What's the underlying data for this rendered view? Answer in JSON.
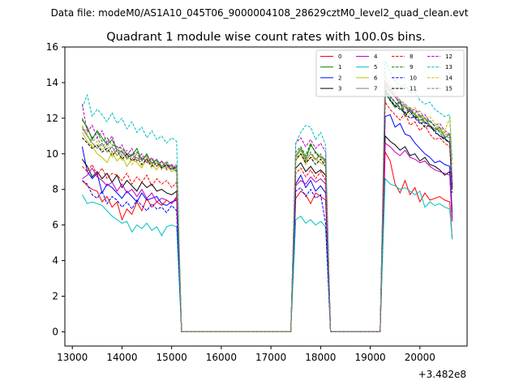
{
  "chart_data": {
    "type": "line",
    "suptitle": "Data file: modeM0/AS1A10_045T06_9000004108_28629cztM0_level2_quad_clean.evt",
    "title": "Quadrant 1 module wise count rates with 100.0s bins.",
    "xlabel": "",
    "ylabel": "",
    "x_offset_label": "+3.482e8",
    "xlim": [
      12850,
      20950
    ],
    "ylim": [
      -0.8,
      16
    ],
    "xticks": [
      13000,
      14000,
      15000,
      16000,
      17000,
      18000,
      19000,
      20000
    ],
    "yticks": [
      0,
      2,
      4,
      6,
      8,
      10,
      12,
      14,
      16
    ],
    "legend": {
      "placement": "top-right",
      "columns": 4
    },
    "segments": [
      {
        "x_start": 13200,
        "count": 20
      },
      {
        "x_start": 17500,
        "count": 7
      },
      {
        "x_start": 19300,
        "count": 14
      }
    ],
    "gaps": [
      {
        "from": 15100,
        "to": 15300
      },
      {
        "from": 17400,
        "to": 17500
      },
      {
        "from": 18100,
        "to": 18200
      },
      {
        "from": 19200,
        "to": 19300
      }
    ],
    "series": [
      {
        "name": "0",
        "color": "#ff0000",
        "dashed": false,
        "values": [
          [
            8.5,
            8.2,
            8.0,
            7.9,
            7.3,
            7.6,
            7.0,
            7.3,
            6.3,
            6.9,
            6.6,
            7.3,
            6.8,
            7.5,
            7.0,
            7.3,
            7.1,
            7.4,
            7.2,
            7.5
          ],
          [
            7.5,
            7.9,
            7.7,
            7.2,
            7.8,
            7.6,
            7.4
          ],
          [
            10.1,
            9.6,
            8.3,
            7.8,
            8.5,
            7.7,
            8.1,
            7.3,
            7.8,
            7.4,
            7.5,
            7.6,
            7.4,
            7.3
          ]
        ]
      },
      {
        "name": "1",
        "color": "#008000",
        "dashed": false,
        "values": [
          [
            11.9,
            11.5,
            10.8,
            11.3,
            10.9,
            10.5,
            10.8,
            10.2,
            10.1,
            9.8,
            9.9,
            10.3,
            9.6,
            10.0,
            9.4,
            9.7,
            9.2,
            9.4,
            9.3,
            9.1
          ],
          [
            9.9,
            10.3,
            9.7,
            10.5,
            10.1,
            9.8,
            9.6
          ],
          [
            13.5,
            13.0,
            12.6,
            12.9,
            12.1,
            12.5,
            12.2,
            11.9,
            12.0,
            11.6,
            11.3,
            11.5,
            10.9,
            11.1
          ]
        ]
      },
      {
        "name": "2",
        "color": "#0000ff",
        "dashed": false,
        "values": [
          [
            10.4,
            9.0,
            8.6,
            8.9,
            7.8,
            8.3,
            8.1,
            7.8,
            7.5,
            7.9,
            7.6,
            7.3,
            7.8,
            7.4,
            7.5,
            7.6,
            7.2,
            7.1,
            7.3,
            7.4
          ],
          [
            8.3,
            8.8,
            8.1,
            8.5,
            7.9,
            8.2,
            7.8
          ],
          [
            12.1,
            12.2,
            11.5,
            11.7,
            11.1,
            11.0,
            10.6,
            10.3,
            10.0,
            9.8,
            9.5,
            9.6,
            9.4,
            9.3
          ]
        ]
      },
      {
        "name": "3",
        "color": "#000000",
        "dashed": false,
        "values": [
          [
            9.7,
            9.3,
            8.7,
            9.0,
            8.6,
            8.9,
            8.4,
            8.8,
            8.1,
            8.5,
            8.2,
            7.9,
            8.4,
            8.1,
            8.3,
            7.9,
            8.0,
            7.8,
            7.7,
            7.9
          ],
          [
            9.2,
            9.5,
            9.0,
            9.3,
            8.9,
            9.1,
            8.8
          ],
          [
            11.0,
            10.7,
            10.5,
            10.2,
            10.4,
            9.9,
            10.0,
            9.6,
            9.8,
            9.4,
            9.3,
            9.1,
            8.8,
            9.0
          ]
        ]
      },
      {
        "name": "4",
        "color": "#bf00bf",
        "dashed": false,
        "values": [
          [
            8.6,
            8.8,
            9.2,
            8.7,
            8.5,
            8.2,
            8.4,
            7.9,
            8.3,
            7.8,
            8.0,
            7.6,
            8.0,
            7.5,
            7.8,
            7.3,
            7.5,
            7.4,
            7.2,
            7.6
          ],
          [
            8.2,
            8.5,
            8.3,
            8.7,
            8.4,
            8.6,
            8.3
          ],
          [
            10.6,
            10.4,
            10.1,
            9.9,
            10.2,
            9.8,
            9.7,
            9.5,
            9.6,
            9.3,
            9.1,
            9.0,
            8.9,
            8.8
          ]
        ]
      },
      {
        "name": "5",
        "color": "#00bfbf",
        "dashed": false,
        "values": [
          [
            7.7,
            7.2,
            7.3,
            7.2,
            7.1,
            6.8,
            6.5,
            6.3,
            6.1,
            6.2,
            5.6,
            6.0,
            5.8,
            6.1,
            5.7,
            5.9,
            5.4,
            5.9,
            6.0,
            5.9
          ],
          [
            6.3,
            6.5,
            6.1,
            6.3,
            6.0,
            6.2,
            5.9
          ],
          [
            8.6,
            8.3,
            8.2,
            8.0,
            8.1,
            7.9,
            7.7,
            7.9,
            7.0,
            7.3,
            7.1,
            7.2,
            7.0,
            6.9
          ]
        ]
      },
      {
        "name": "6",
        "color": "#bfbf00",
        "dashed": false,
        "values": [
          [
            11.2,
            10.7,
            10.4,
            10.0,
            9.8,
            9.5,
            10.1,
            9.6,
            9.9,
            9.3,
            9.7,
            9.5,
            9.2,
            9.8,
            9.4,
            9.1,
            9.6,
            9.3,
            9.0,
            9.2
          ],
          [
            9.6,
            10.0,
            9.4,
            9.8,
            9.7,
            9.5,
            9.3
          ],
          [
            13.8,
            13.3,
            12.9,
            12.5,
            12.7,
            12.2,
            12.3,
            11.9,
            11.8,
            11.5,
            11.3,
            11.4,
            11.1,
            11.0
          ]
        ]
      },
      {
        "name": "7",
        "color": "#7f7f7f",
        "dashed": false,
        "values": [
          [
            11.5,
            11.0,
            10.6,
            10.3,
            10.6,
            10.1,
            10.4,
            9.9,
            10.2,
            9.7,
            10.0,
            9.6,
            9.8,
            9.5,
            9.7,
            9.3,
            9.6,
            9.2,
            9.4,
            9.1
          ],
          [
            9.8,
            10.2,
            9.6,
            10.0,
            9.7,
            9.9,
            9.5
          ],
          [
            13.9,
            13.5,
            13.2,
            12.8,
            12.6,
            12.4,
            12.0,
            12.2,
            11.8,
            11.6,
            11.4,
            11.3,
            11.0,
            10.9
          ]
        ]
      },
      {
        "name": "8",
        "color": "#ff0000",
        "dashed": true,
        "values": [
          [
            9.3,
            9.0,
            9.4,
            8.8,
            9.2,
            8.6,
            8.9,
            8.8,
            8.5,
            8.9,
            8.3,
            8.7,
            8.4,
            8.8,
            8.2,
            8.6,
            8.3,
            8.5,
            8.1,
            8.4
          ],
          [
            8.9,
            9.2,
            8.7,
            9.1,
            8.6,
            9.0,
            8.5
          ],
          [
            12.9,
            12.5,
            12.2,
            11.9,
            12.3,
            11.6,
            11.8,
            11.3,
            11.6,
            11.1,
            10.8,
            10.9,
            10.6,
            10.4
          ]
        ]
      },
      {
        "name": "9",
        "color": "#008000",
        "dashed": true,
        "values": [
          [
            12.0,
            11.4,
            10.9,
            11.2,
            10.7,
            10.9,
            10.5,
            10.4,
            10.3,
            10.0,
            9.9,
            10.1,
            9.7,
            9.9,
            9.5,
            9.6,
            9.3,
            9.5,
            9.2,
            9.0
          ],
          [
            10.1,
            10.4,
            9.9,
            10.6,
            10.0,
            9.8,
            9.7
          ],
          [
            13.6,
            13.1,
            12.7,
            13.0,
            12.3,
            12.6,
            12.0,
            12.1,
            11.7,
            11.9,
            11.5,
            11.2,
            10.8,
            10.6
          ]
        ]
      },
      {
        "name": "10",
        "color": "#0000ff",
        "dashed": true,
        "values": [
          [
            8.5,
            8.3,
            7.7,
            7.5,
            7.9,
            7.2,
            7.6,
            7.4,
            7.0,
            7.3,
            6.9,
            7.4,
            7.1,
            6.8,
            7.2,
            6.9,
            7.0,
            6.7,
            7.1,
            6.8
          ],
          [
            7.9,
            8.1,
            7.6,
            8.0,
            7.5,
            7.7,
            6.1
          ],
          [
            13.6,
            13.2,
            12.9,
            12.6,
            12.3,
            12.4,
            12.0,
            11.7,
            11.8,
            11.5,
            11.3,
            11.0,
            10.9,
            10.6
          ]
        ]
      },
      {
        "name": "11",
        "color": "#000000",
        "dashed": true,
        "values": [
          [
            10.9,
            10.6,
            10.3,
            10.5,
            10.1,
            10.3,
            9.9,
            10.2,
            9.7,
            10.0,
            9.6,
            9.8,
            9.4,
            9.7,
            9.3,
            9.5,
            9.2,
            9.4,
            9.1,
            9.3
          ],
          [
            9.7,
            10.0,
            9.5,
            9.8,
            9.4,
            9.7,
            9.3
          ],
          [
            13.4,
            13.0,
            12.7,
            12.5,
            12.3,
            12.0,
            12.1,
            11.8,
            11.5,
            11.6,
            11.2,
            11.0,
            10.8,
            10.7
          ]
        ]
      },
      {
        "name": "12",
        "color": "#bf00bf",
        "dashed": true,
        "values": [
          [
            12.8,
            11.2,
            11.6,
            10.9,
            11.3,
            10.6,
            11.0,
            10.2,
            10.5,
            9.9,
            10.3,
            9.6,
            10.0,
            9.5,
            9.8,
            9.3,
            9.6,
            9.1,
            9.4,
            9.2
          ],
          [
            10.6,
            10.9,
            10.4,
            10.8,
            10.3,
            10.6,
            10.1
          ],
          [
            14.0,
            13.6,
            13.2,
            12.9,
            12.7,
            12.4,
            12.5,
            12.1,
            12.2,
            11.8,
            11.6,
            11.7,
            11.3,
            11.1
          ]
        ]
      },
      {
        "name": "13",
        "color": "#00bfbf",
        "dashed": true,
        "values": [
          [
            12.6,
            13.3,
            12.1,
            12.5,
            12.2,
            11.8,
            12.3,
            11.7,
            12.0,
            11.4,
            11.8,
            11.2,
            11.5,
            10.9,
            11.3,
            10.8,
            11.0,
            10.6,
            10.9,
            10.7
          ],
          [
            10.6,
            11.2,
            11.6,
            11.5,
            10.8,
            11.2,
            10.5
          ],
          [
            15.2,
            14.6,
            14.1,
            13.8,
            13.9,
            13.4,
            13.5,
            13.0,
            12.8,
            12.9,
            12.5,
            12.3,
            12.1,
            12.2
          ]
        ]
      },
      {
        "name": "14",
        "color": "#bfbf00",
        "dashed": true,
        "values": [
          [
            11.6,
            11.1,
            10.4,
            10.7,
            10.2,
            10.5,
            9.8,
            10.2,
            9.6,
            9.9,
            9.4,
            9.8,
            9.3,
            9.6,
            9.2,
            9.5,
            9.1,
            9.3,
            9.0,
            9.2
          ],
          [
            9.8,
            10.2,
            9.7,
            10.0,
            9.6,
            9.9,
            9.4
          ],
          [
            14.4,
            13.9,
            13.4,
            13.0,
            12.8,
            12.5,
            12.6,
            12.2,
            12.0,
            12.1,
            11.7,
            11.5,
            11.3,
            12.0
          ]
        ]
      },
      {
        "name": "15",
        "color": "#7f7f7f",
        "dashed": true,
        "values": [
          [
            11.4,
            11.0,
            10.7,
            10.9,
            10.4,
            10.7,
            10.1,
            10.4,
            9.9,
            10.2,
            9.7,
            10.0,
            9.6,
            9.9,
            9.5,
            9.7,
            9.3,
            9.6,
            9.2,
            9.4
          ],
          [
            9.9,
            10.3,
            9.8,
            10.1,
            9.7,
            10.0,
            9.6
          ],
          [
            14.1,
            13.7,
            13.3,
            13.0,
            12.8,
            12.5,
            12.3,
            12.4,
            12.0,
            11.8,
            11.6,
            11.4,
            11.2,
            11.0
          ]
        ]
      }
    ]
  }
}
